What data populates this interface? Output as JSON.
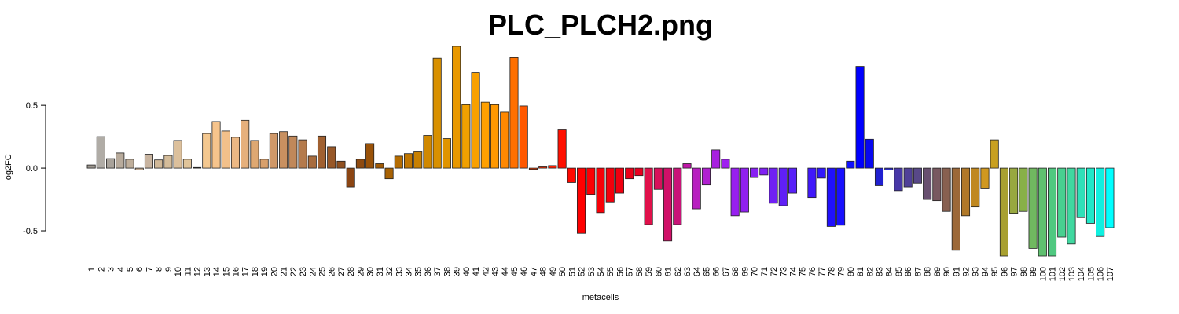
{
  "chart_data": {
    "type": "bar",
    "title": "PLC_PLCH2.png",
    "x_label": "metacells",
    "y_label": "log2FC",
    "categories": [
      "1",
      "2",
      "3",
      "4",
      "5",
      "6",
      "7",
      "8",
      "9",
      "10",
      "11",
      "12",
      "13",
      "14",
      "15",
      "16",
      "17",
      "18",
      "19",
      "20",
      "21",
      "22",
      "23",
      "24",
      "25",
      "26",
      "27",
      "28",
      "29",
      "30",
      "31",
      "32",
      "33",
      "34",
      "35",
      "36",
      "37",
      "38",
      "39",
      "40",
      "41",
      "42",
      "43",
      "44",
      "45",
      "46",
      "47",
      "48",
      "49",
      "50",
      "51",
      "52",
      "53",
      "54",
      "55",
      "56",
      "57",
      "58",
      "59",
      "60",
      "61",
      "62",
      "63",
      "64",
      "65",
      "66",
      "67",
      "68",
      "69",
      "70",
      "71",
      "72",
      "73",
      "74",
      "75",
      "76",
      "77",
      "78",
      "79",
      "80",
      "81",
      "82",
      "83",
      "84",
      "85",
      "86",
      "87",
      "88",
      "89",
      "90",
      "91",
      "92",
      "93",
      "94",
      "95",
      "96",
      "97",
      "98",
      "99",
      "100",
      "101",
      "102",
      "103",
      "104",
      "105",
      "106",
      "107"
    ],
    "values": [
      0.025,
      0.25,
      0.075,
      0.12,
      0.07,
      -0.015,
      0.11,
      0.065,
      0.1,
      0.22,
      0.07,
      0.005,
      0.275,
      0.37,
      0.295,
      0.245,
      0.38,
      0.22,
      0.07,
      0.275,
      0.29,
      0.255,
      0.225,
      0.095,
      0.255,
      0.17,
      0.055,
      -0.15,
      0.07,
      0.195,
      0.035,
      -0.085,
      0.095,
      0.115,
      0.135,
      0.26,
      0.875,
      0.235,
      0.97,
      0.505,
      0.76,
      0.525,
      0.505,
      0.445,
      0.88,
      0.495,
      -0.01,
      0.01,
      0.02,
      0.31,
      -0.115,
      -0.52,
      -0.21,
      -0.355,
      -0.27,
      -0.2,
      -0.085,
      -0.06,
      -0.45,
      -0.17,
      -0.58,
      -0.45,
      0.035,
      -0.325,
      -0.135,
      0.145,
      0.07,
      -0.38,
      -0.35,
      -0.075,
      -0.055,
      -0.28,
      -0.3,
      -0.2,
      0,
      -0.235,
      -0.08,
      -0.465,
      -0.455,
      0.055,
      0.81,
      0.23,
      -0.14,
      -0.015,
      -0.18,
      -0.15,
      -0.12,
      -0.25,
      -0.26,
      -0.345,
      -0.655,
      -0.38,
      -0.31,
      -0.165,
      0.225,
      -0.7,
      -0.36,
      -0.345,
      -0.64,
      -0.7,
      -0.7,
      -0.55,
      -0.605,
      -0.395,
      -0.44,
      -0.545,
      -0.475
    ],
    "colors": [
      "#9e9890",
      "#b0aca6",
      "#a8a29a",
      "#b8ab9c",
      "#bfae9a",
      "#c0a890",
      "#c8b4a0",
      "#d0b898",
      "#d4bc9a",
      "#dcc09c",
      "#e0c49a",
      "#e8c898",
      "#f4c890",
      "#f6c48c",
      "#f2c08a",
      "#ecb884",
      "#e6b07c",
      "#dea872",
      "#d8a06c",
      "#d09868",
      "#c89060",
      "#c0885a",
      "#b47a4c",
      "#a86c3e",
      "#a06030",
      "#985828",
      "#905020",
      "#8b4513",
      "#8e4a10",
      "#9a5208",
      "#a05a06",
      "#a86204",
      "#b46c02",
      "#c07600",
      "#c88000",
      "#d08800",
      "#d89000",
      "#e09400",
      "#e89800",
      "#f0a000",
      "#f8a000",
      "#ffa000",
      "#ff9800",
      "#ff8800",
      "#ff7000",
      "#ff5800",
      "#ff4000",
      "#ff3000",
      "#ff2000",
      "#ff1000",
      "#ff0800",
      "#ff0000",
      "#fc0004",
      "#f80008",
      "#f4000c",
      "#f00010",
      "#ec0018",
      "#e80020",
      "#e0104a",
      "#d8105a",
      "#d01068",
      "#c81478",
      "#c018a8",
      "#b820c0",
      "#b020d0",
      "#a820e0",
      "#a020f0",
      "#9820f0",
      "#9020f0",
      "#8820f2",
      "#8020f4",
      "#7020f4",
      "#6020f6",
      "#5820f8",
      "#5020f8",
      "#4018fa",
      "#3018fc",
      "#2010fc",
      "#1810fe",
      "#1010ff",
      "#0000ff",
      "#0808f0",
      "#2020d0",
      "#3030c0",
      "#4838a8",
      "#504098",
      "#584888",
      "#685070",
      "#785860",
      "#886050",
      "#9c6838",
      "#b07828",
      "#c08820",
      "#d09820",
      "#c8a020",
      "#a8a030",
      "#98a840",
      "#88b048",
      "#70b860",
      "#60c070",
      "#50c880",
      "#48d090",
      "#40d8a0",
      "#30e0b8",
      "#20e8c8",
      "#10f0e0",
      "#00ffff"
    ],
    "ylim": [
      -0.7,
      0.97
    ],
    "yticks": [
      -0.5,
      {
        "value": 0,
        "label": "0.0"
      },
      0.5
    ]
  }
}
